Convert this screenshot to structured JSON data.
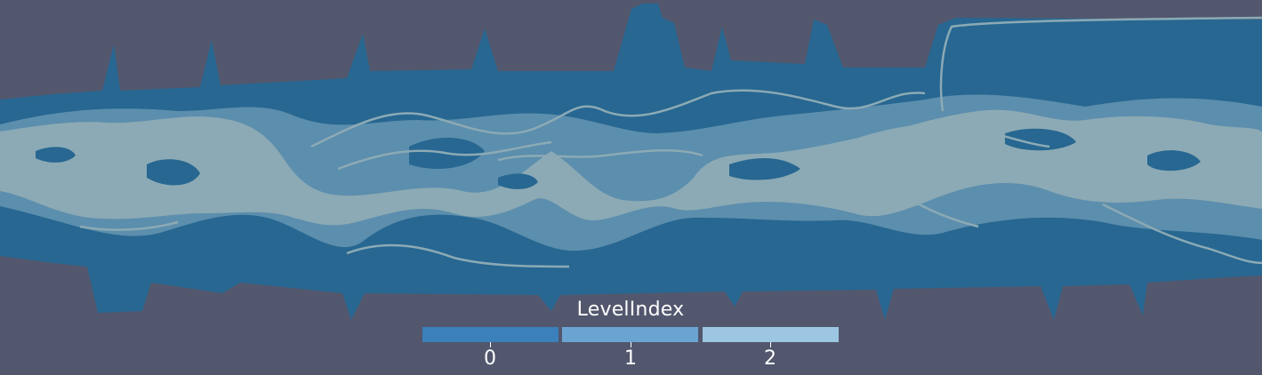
{
  "scene": {
    "background_color": "#52576e",
    "level_colors": [
      "#276791",
      "#5c8ead",
      "#8caab5"
    ]
  },
  "legend": {
    "title": "LevelIndex",
    "entries": [
      {
        "label": "0",
        "color": "#3b80ba"
      },
      {
        "label": "1",
        "color": "#6aa4d2"
      },
      {
        "label": "2",
        "color": "#9cc6e1"
      }
    ]
  }
}
